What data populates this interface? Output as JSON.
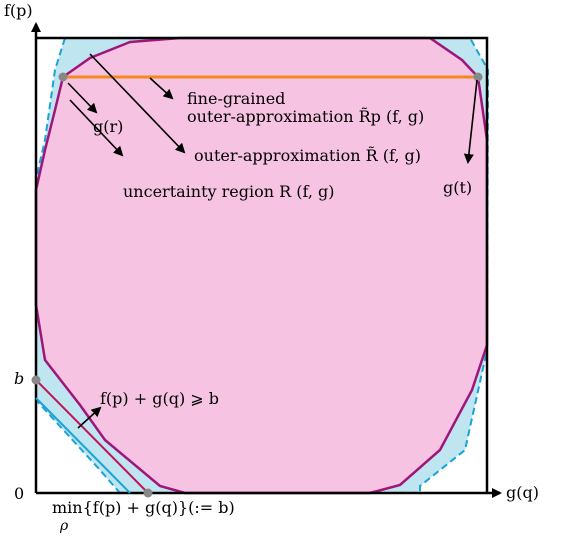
{
  "axes": {
    "y_label": "f(p)",
    "x_label": "g(q)",
    "origin_label": "0",
    "b_label": "b",
    "min_label": "min{f(p) + g(q)}(:= b)",
    "min_subscript": "ρ"
  },
  "points": {
    "r_label": "g(r)",
    "t_label": "g(t)"
  },
  "annotations": {
    "fine_grained_line1": "fine-grained",
    "fine_grained_line2": "outer-approximation R̃p (f, g)",
    "outer_approx": "outer-approximation R̃ (f, g)",
    "uncertainty_region": "uncertainty region R (f, g)",
    "inequality": "f(p) + g(q) ⩾ b"
  },
  "colors": {
    "region_fill": "#f6c3e2",
    "region_stroke": "#a0157a",
    "outer_fill": "#bfe6f0",
    "outer_stroke": "#1aa3d6",
    "orange_line": "#f28a1e",
    "axis": "#000000",
    "point": "#888888"
  }
}
